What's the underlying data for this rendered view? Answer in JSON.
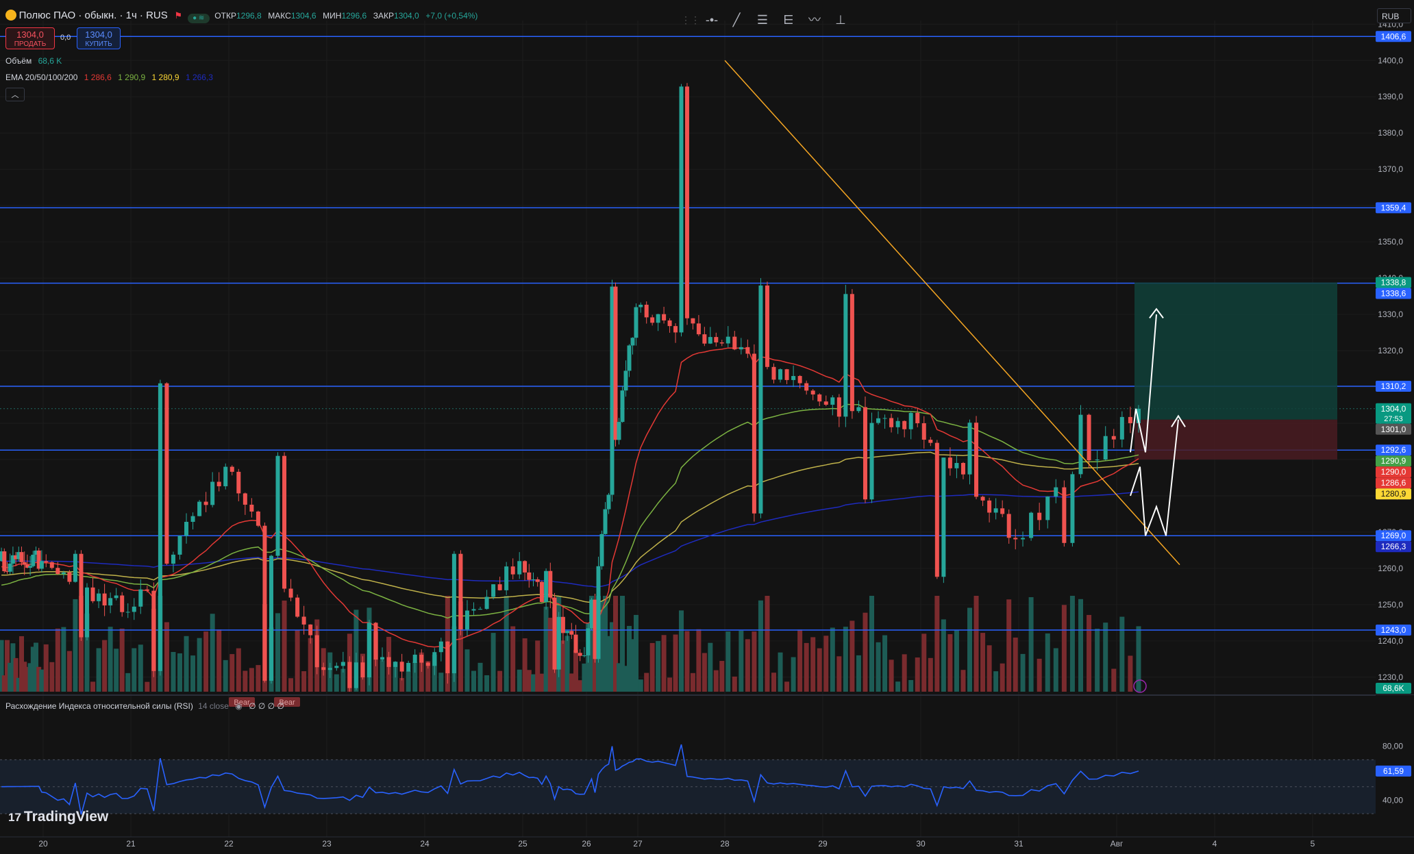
{
  "header": {
    "symbol": "Полюс ПАО · обыкн. · 1ч · RUS",
    "ohlc_labels": [
      "ОТКР",
      "МАКС",
      "МИН",
      "ЗАКР"
    ],
    "ohlc_values": [
      "1296,8",
      "1304,6",
      "1296,6",
      "1304,0"
    ],
    "change": "+7,0 (+0,54%)",
    "sell_price": "1304,0",
    "sell_label": "ПРОДАТЬ",
    "spread": "0,0",
    "buy_price": "1304,0",
    "buy_label": "КУПИТЬ",
    "volume_label": "Объём",
    "volume_value": "68,6 K",
    "ema_label": "EMA 20/50/100/200",
    "ema_values": [
      "1 286,6",
      "1 290,9",
      "1 280,9",
      "1 266,3"
    ],
    "currency": "RUB",
    "collapse_icon": "chevron-up-icon"
  },
  "toolbar_icons": [
    "drag-handle-icon",
    "horizontal-line-icon",
    "trend-line-icon",
    "fib-retracement-icon",
    "pitchfork-icon",
    "pattern-icon",
    "long-position-icon"
  ],
  "rsi_panel": {
    "title": "Расхождение Индекса относительной силы (RSI)",
    "params": "14 close",
    "bear_badge": "Bear",
    "extra": "∅ ∅ ∅ ∅",
    "value": "61,59"
  },
  "logo": "TradingView",
  "colors": {
    "background": "#131313",
    "up": "#26a69a",
    "down": "#ef5350",
    "hline": "#2962ff",
    "trendline": "#f5a623",
    "ema20": "#e53935",
    "ema50": "#7cb342",
    "ema100": "#c0b24a",
    "ema200": "#1e2bbf",
    "rsi": "#2962ff"
  },
  "chart_data": {
    "type": "candlestick",
    "timeframe": "1h",
    "x_tick_labels": [
      "20",
      "21",
      "22",
      "23",
      "24",
      "25",
      "26",
      "27",
      "28",
      "29",
      "30",
      "31",
      "Авг",
      "4",
      "5"
    ],
    "y_tick_labels": [
      "1230,0",
      "1240,0",
      "1250,0",
      "1260,0",
      "1270,0",
      "1280,0",
      "1290,0",
      "1300,0",
      "1310,0",
      "1320,0",
      "1330,0",
      "1340,0",
      "1350,0",
      "1360,0",
      "1370,0",
      "1380,0",
      "1390,0",
      "1400,0",
      "1410,0"
    ],
    "ylim": [
      1226,
      1411
    ],
    "horizontal_levels": [
      1406.6,
      1359.4,
      1338.6,
      1310.2,
      1292.6,
      1269.0,
      1243.0
    ],
    "price_labels": [
      {
        "text": "1406,6",
        "value": 1406.6,
        "color": "#2962ff"
      },
      {
        "text": "1359,4",
        "value": 1359.4,
        "color": "#2962ff"
      },
      {
        "text": "1338,8",
        "value": 1338.8,
        "color": "#089981"
      },
      {
        "text": "1338,6",
        "value": 1338.6,
        "color": "#2962ff"
      },
      {
        "text": "1310,2",
        "value": 1310.2,
        "color": "#2962ff"
      },
      {
        "text": "1304,0",
        "sub": "27:53",
        "value": 1304.0,
        "color": "#089981"
      },
      {
        "text": "1301,0",
        "value": 1301.0,
        "color": "#555555"
      },
      {
        "text": "1292,6",
        "value": 1292.6,
        "color": "#2962ff"
      },
      {
        "text": "1290,9",
        "value": 1290.9,
        "color": "#43a047"
      },
      {
        "text": "1290,0",
        "value": 1290.0,
        "color": "#e53935"
      },
      {
        "text": "1286,6",
        "value": 1286.6,
        "color": "#e53935"
      },
      {
        "text": "1280,9",
        "value": 1280.9,
        "color": "#fdd835",
        "dark_text": true
      },
      {
        "text": "1269,0",
        "value": 1269.0,
        "color": "#2962ff"
      },
      {
        "text": "1266,3",
        "value": 1266.3,
        "color": "#1e2bbf"
      },
      {
        "text": "1243,0",
        "value": 1243.0,
        "color": "#2962ff"
      }
    ],
    "days": [
      {
        "label": "20",
        "open": 1262,
        "high": 1266,
        "low": 1258,
        "close": 1262
      },
      {
        "label": "21",
        "open": 1262,
        "high": 1265,
        "low": 1240,
        "close": 1248
      },
      {
        "label": "22",
        "open": 1248,
        "high": 1312,
        "low": 1230,
        "close": 1288
      },
      {
        "label": "23",
        "open": 1288,
        "high": 1292,
        "low": 1228,
        "close": 1232
      },
      {
        "label": "24",
        "open": 1232,
        "high": 1246,
        "low": 1226,
        "close": 1234
      },
      {
        "label": "25",
        "open": 1234,
        "high": 1265,
        "low": 1228,
        "close": 1262
      },
      {
        "label": "26",
        "open": 1262,
        "high": 1264,
        "low": 1230,
        "close": 1236
      },
      {
        "label": "27",
        "open": 1236,
        "high": 1340,
        "low": 1234,
        "close": 1332
      },
      {
        "label": "28",
        "open": 1332,
        "high": 1396,
        "low": 1306,
        "close": 1322
      },
      {
        "label": "29",
        "open": 1322,
        "high": 1340,
        "low": 1272,
        "close": 1306
      },
      {
        "label": "30",
        "open": 1306,
        "high": 1340,
        "low": 1278,
        "close": 1300
      },
      {
        "label": "31",
        "open": 1300,
        "high": 1302,
        "low": 1256,
        "close": 1268
      },
      {
        "label": "Авг",
        "open": 1268,
        "high": 1305,
        "low": 1266,
        "close": 1304
      }
    ],
    "ema": {
      "ema20": 1286.6,
      "ema50": 1290.9,
      "ema100": 1280.9,
      "ema200": 1266.3
    },
    "rsi": {
      "ylim": [
        28,
        90
      ],
      "y_tick_labels": [
        "40,00",
        "80,00"
      ],
      "last": 61.59
    }
  }
}
